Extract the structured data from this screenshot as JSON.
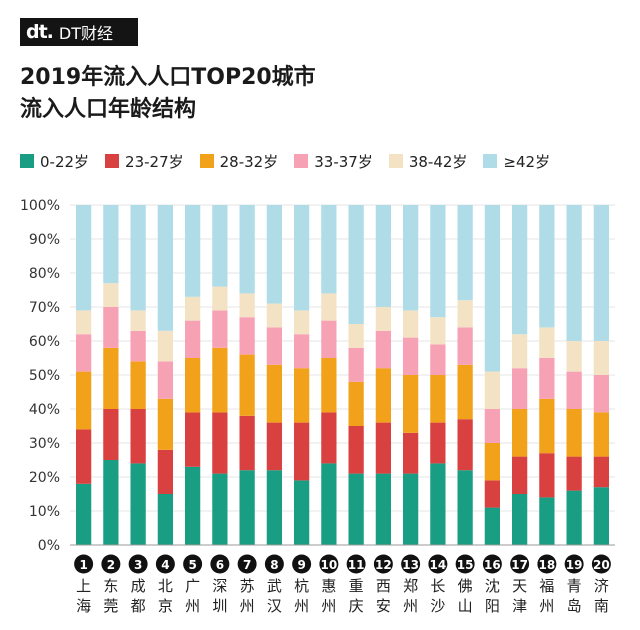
{
  "brand": {
    "mark": "dt.",
    "name": "DT财经"
  },
  "title": {
    "line1": "2019年流入人口TOP20城市",
    "line2": "流入人口年龄结构"
  },
  "colors": {
    "0-22": "#1a9e83",
    "23-27": "#d8413f",
    "28-32": "#f2a21a",
    "33-37": "#f7a1b5",
    "38-42": "#f3e3c4",
    "42plus": "#b0dce8"
  },
  "chart_data": {
    "type": "bar",
    "stacked": true,
    "ylim": [
      0,
      100
    ],
    "yticks": [
      "0%",
      "10%",
      "20%",
      "30%",
      "40%",
      "50%",
      "60%",
      "70%",
      "80%",
      "90%",
      "100%"
    ],
    "categories": [
      {
        "rank": "1",
        "name": "上海"
      },
      {
        "rank": "2",
        "name": "东莞"
      },
      {
        "rank": "3",
        "name": "成都"
      },
      {
        "rank": "4",
        "name": "北京"
      },
      {
        "rank": "5",
        "name": "广州"
      },
      {
        "rank": "6",
        "name": "深圳"
      },
      {
        "rank": "7",
        "name": "苏州"
      },
      {
        "rank": "8",
        "name": "武汉"
      },
      {
        "rank": "9",
        "name": "杭州"
      },
      {
        "rank": "10",
        "name": "惠州"
      },
      {
        "rank": "11",
        "name": "重庆"
      },
      {
        "rank": "12",
        "name": "西安"
      },
      {
        "rank": "13",
        "name": "郑州"
      },
      {
        "rank": "14",
        "name": "长沙"
      },
      {
        "rank": "15",
        "name": "佛山"
      },
      {
        "rank": "16",
        "name": "沈阳"
      },
      {
        "rank": "17",
        "name": "天津"
      },
      {
        "rank": "18",
        "name": "福州"
      },
      {
        "rank": "19",
        "name": "青岛"
      },
      {
        "rank": "20",
        "name": "济南"
      }
    ],
    "series": [
      {
        "name": "0-22岁",
        "color_key": "0-22",
        "values": [
          18,
          25,
          24,
          15,
          23,
          21,
          22,
          22,
          19,
          24,
          21,
          21,
          21,
          24,
          22,
          11,
          15,
          14,
          16,
          17
        ]
      },
      {
        "name": "23-27岁",
        "color_key": "23-27",
        "values": [
          16,
          15,
          16,
          13,
          16,
          18,
          16,
          14,
          17,
          15,
          14,
          15,
          12,
          12,
          15,
          8,
          11,
          13,
          10,
          9
        ]
      },
      {
        "name": "28-32岁",
        "color_key": "28-32",
        "values": [
          17,
          18,
          14,
          15,
          16,
          19,
          18,
          17,
          16,
          16,
          13,
          16,
          17,
          14,
          16,
          11,
          14,
          16,
          14,
          13
        ]
      },
      {
        "name": "33-37岁",
        "color_key": "33-37",
        "values": [
          11,
          12,
          9,
          11,
          11,
          11,
          11,
          11,
          10,
          11,
          10,
          11,
          11,
          9,
          11,
          10,
          12,
          12,
          11,
          11
        ]
      },
      {
        "name": "38-42岁",
        "color_key": "38-42",
        "values": [
          7,
          7,
          6,
          9,
          7,
          7,
          7,
          7,
          7,
          8,
          7,
          7,
          8,
          8,
          8,
          11,
          10,
          9,
          9,
          10
        ]
      },
      {
        "name": "≥42岁",
        "color_key": "42plus",
        "values": [
          31,
          23,
          31,
          37,
          27,
          24,
          26,
          29,
          31,
          26,
          35,
          30,
          31,
          33,
          28,
          49,
          38,
          36,
          40,
          40
        ]
      }
    ]
  }
}
